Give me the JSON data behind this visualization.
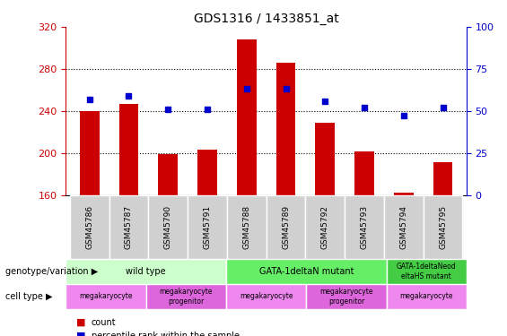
{
  "title": "GDS1316 / 1433851_at",
  "samples": [
    "GSM45786",
    "GSM45787",
    "GSM45790",
    "GSM45791",
    "GSM45788",
    "GSM45789",
    "GSM45792",
    "GSM45793",
    "GSM45794",
    "GSM45795"
  ],
  "counts": [
    240,
    247,
    199,
    203,
    308,
    286,
    229,
    201,
    162,
    191
  ],
  "percentiles": [
    57,
    59,
    51,
    51,
    63,
    63,
    56,
    52,
    47,
    52
  ],
  "ylim_left": [
    160,
    320
  ],
  "ylim_right": [
    0,
    100
  ],
  "yticks_left": [
    160,
    200,
    240,
    280,
    320
  ],
  "yticks_right": [
    0,
    25,
    50,
    75,
    100
  ],
  "bar_color": "#cc0000",
  "dot_color": "#0000cc",
  "bar_width": 0.5,
  "genotype_groups": [
    {
      "label": "wild type",
      "start": 0,
      "end": 4,
      "color": "#ccffcc"
    },
    {
      "label": "GATA-1deltaN mutant",
      "start": 4,
      "end": 8,
      "color": "#66ee66"
    },
    {
      "label": "GATA-1deltaNeoeltaHS mutant",
      "start": 8,
      "end": 10,
      "color": "#44cc44"
    }
  ],
  "cell_type_groups": [
    {
      "label": "megakaryocyte",
      "start": 0,
      "end": 2,
      "color": "#ee88ee"
    },
    {
      "label": "megakaryocyte\nprogenitor",
      "start": 2,
      "end": 4,
      "color": "#dd66dd"
    },
    {
      "label": "megakaryocyte",
      "start": 4,
      "end": 6,
      "color": "#ee88ee"
    },
    {
      "label": "megakaryocyte\nprogenitor",
      "start": 6,
      "end": 8,
      "color": "#dd66dd"
    },
    {
      "label": "megakaryocyte",
      "start": 8,
      "end": 10,
      "color": "#ee88ee"
    }
  ],
  "legend_count_color": "#cc0000",
  "legend_percentile_color": "#0000cc",
  "left_label_color": "#cc0000",
  "right_label_color": "#0000cc",
  "annotation_row1_label": "genotype/variation",
  "annotation_row2_label": "cell type"
}
